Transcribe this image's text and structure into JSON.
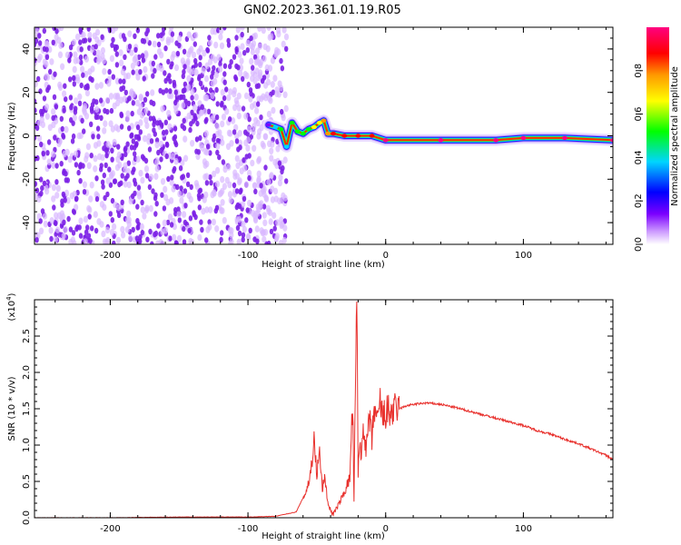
{
  "title": "GN02.2023.361.01.19.R05",
  "colors": {
    "snr_line": "#e8302c",
    "noise_dots": "#7b1fe6",
    "axis": "#000000"
  },
  "chart_data": [
    {
      "type": "heatmap",
      "name": "spectrogram",
      "xlabel": "Height of straight line (km)",
      "ylabel": "Frequency (Hz)",
      "xlim": [
        -255,
        165
      ],
      "ylim": [
        -50,
        50
      ],
      "xticks": [
        -200,
        -100,
        0,
        100
      ],
      "yticks": [
        -40,
        -20,
        0,
        20,
        40
      ],
      "colorbar": {
        "label": "Normalized spectral amplitude",
        "range": [
          0,
          1
        ],
        "ticks": [
          "0.0",
          "0.2",
          "0.4",
          "0.6",
          "0.8"
        ],
        "colormap": [
          "#ffffff",
          "#cc99ff",
          "#7b00ff",
          "#0000ff",
          "#00d5ff",
          "#00ff00",
          "#ffff00",
          "#ff9900",
          "#ff0000",
          "#ff0080"
        ]
      },
      "noise_region_x": [
        -255,
        -82
      ],
      "signal_track": [
        {
          "x": -85,
          "y": 5,
          "amp": 0.25
        },
        {
          "x": -80,
          "y": 4,
          "amp": 0.45
        },
        {
          "x": -76,
          "y": 3,
          "amp": 0.5
        },
        {
          "x": -72,
          "y": -5,
          "amp": 0.45
        },
        {
          "x": -68,
          "y": 6,
          "amp": 0.55
        },
        {
          "x": -64,
          "y": 2,
          "amp": 0.6
        },
        {
          "x": -60,
          "y": 1,
          "amp": 0.55
        },
        {
          "x": -56,
          "y": 3,
          "amp": 0.6
        },
        {
          "x": -52,
          "y": 4,
          "amp": 0.65
        },
        {
          "x": -48,
          "y": 6,
          "amp": 0.7
        },
        {
          "x": -45,
          "y": 7,
          "amp": 0.75
        },
        {
          "x": -42,
          "y": 1,
          "amp": 0.8
        },
        {
          "x": -38,
          "y": 1,
          "amp": 0.85
        },
        {
          "x": -30,
          "y": 0,
          "amp": 0.85
        },
        {
          "x": -20,
          "y": 0,
          "amp": 0.85
        },
        {
          "x": -10,
          "y": 0,
          "amp": 0.85
        },
        {
          "x": 0,
          "y": -2,
          "amp": 0.95
        },
        {
          "x": 40,
          "y": -2,
          "amp": 0.95
        },
        {
          "x": 80,
          "y": -2,
          "amp": 0.95
        },
        {
          "x": 100,
          "y": -1,
          "amp": 0.95
        },
        {
          "x": 130,
          "y": -1,
          "amp": 0.95
        },
        {
          "x": 165,
          "y": -2,
          "amp": 0.95
        }
      ]
    },
    {
      "type": "line",
      "name": "snr",
      "xlabel": "Height of straight line (km)",
      "ylabel": "SNR (10 * v/v)",
      "multiplier_label": "(x10",
      "multiplier_exp": "4",
      "xlim": [
        -255,
        165
      ],
      "ylim": [
        0,
        3.0
      ],
      "xticks": [
        -200,
        -100,
        0,
        100
      ],
      "yticks": [
        "0.0",
        "0.5",
        "1.0",
        "1.5",
        "2.0",
        "2.5"
      ],
      "series": [
        {
          "x": [
            -255,
            -200,
            -150,
            -100,
            -80,
            -65,
            -58,
            -55,
            -52,
            -50,
            -48,
            -46,
            -44,
            -42,
            -40,
            -38,
            -35,
            -30,
            -26,
            -24,
            -23,
            -22,
            -21,
            -20,
            -19,
            -18,
            -16,
            -14,
            -12,
            -10,
            -8,
            -6,
            -4,
            -2,
            0,
            5,
            10,
            15,
            20,
            30,
            40,
            50,
            60,
            70,
            80,
            90,
            100,
            110,
            120,
            130,
            140,
            150,
            160,
            165
          ],
          "y": [
            0.0,
            0.0,
            0.01,
            0.01,
            0.02,
            0.08,
            0.35,
            0.55,
            1.05,
            0.6,
            0.9,
            0.4,
            0.55,
            0.2,
            0.1,
            0.05,
            0.15,
            0.35,
            0.55,
            1.6,
            0.2,
            1.7,
            3.0,
            0.6,
            1.1,
            0.8,
            1.3,
            0.9,
            1.4,
            1.05,
            1.55,
            1.25,
            1.6,
            1.35,
            1.45,
            1.45,
            1.5,
            1.54,
            1.56,
            1.58,
            1.56,
            1.52,
            1.47,
            1.42,
            1.37,
            1.32,
            1.27,
            1.2,
            1.15,
            1.08,
            1.02,
            0.94,
            0.86,
            0.8
          ]
        }
      ]
    }
  ]
}
